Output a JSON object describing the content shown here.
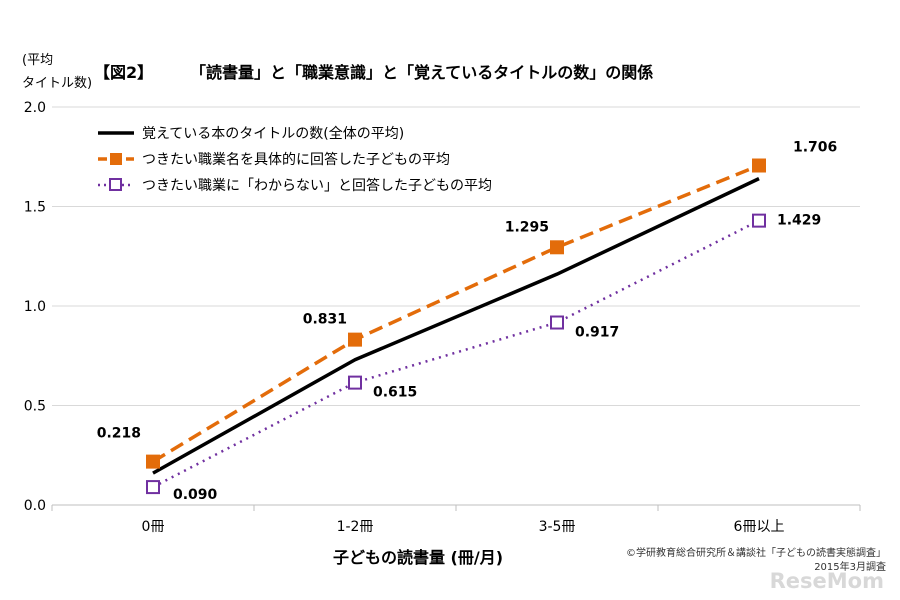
{
  "figure": {
    "number_label": "【図2】",
    "title": "「読書量」と「職業意識」と「覚えているタイトルの数」の関係",
    "ylabel_line1": "(平均",
    "ylabel_line2": "タイトル数)",
    "credit_line1": "©学研教育総合研究所＆講談社「子どもの読書実態調査」",
    "credit_line2": "2015年3月調査",
    "logo": "ReseMom"
  },
  "colors": {
    "overall": "#000000",
    "specific": "#e36c0a",
    "unknown": "#7030a0",
    "grid": "#d9d9d9",
    "axis": "#bfbfbf"
  },
  "chart_data": {
    "type": "line",
    "title": "「読書量」と「職業意識」と「覚えているタイトルの数」の関係",
    "xlabel": "子どもの読書量 (冊/月)",
    "ylabel": "(平均タイトル数)",
    "categories": [
      "0冊",
      "1-2冊",
      "3-5冊",
      "6冊以上"
    ],
    "ylim": [
      0,
      2.0
    ],
    "yticks": [
      "0.0",
      "0.5",
      "1.0",
      "1.5",
      "2.0"
    ],
    "grid": true,
    "legend_position": "top-left",
    "series": [
      {
        "name": "覚えている本のタイトルの数(全体の平均)",
        "values": [
          0.16,
          0.73,
          1.16,
          1.64
        ],
        "style": "solid",
        "marker": "none",
        "labels": [
          "",
          "",
          "",
          ""
        ]
      },
      {
        "name": "つきたい職業名を具体的に回答した子どもの平均",
        "values": [
          0.218,
          0.831,
          1.295,
          1.706
        ],
        "style": "dashed",
        "marker": "filled-square",
        "labels": [
          "0.218",
          "0.831",
          "1.295",
          "1.706"
        ]
      },
      {
        "name": "つきたい職業に「わからない」と回答した子どもの平均",
        "values": [
          0.09,
          0.615,
          0.917,
          1.429
        ],
        "style": "dotted",
        "marker": "open-square",
        "labels": [
          "0.090",
          "0.615",
          "0.917",
          "1.429"
        ]
      }
    ]
  }
}
